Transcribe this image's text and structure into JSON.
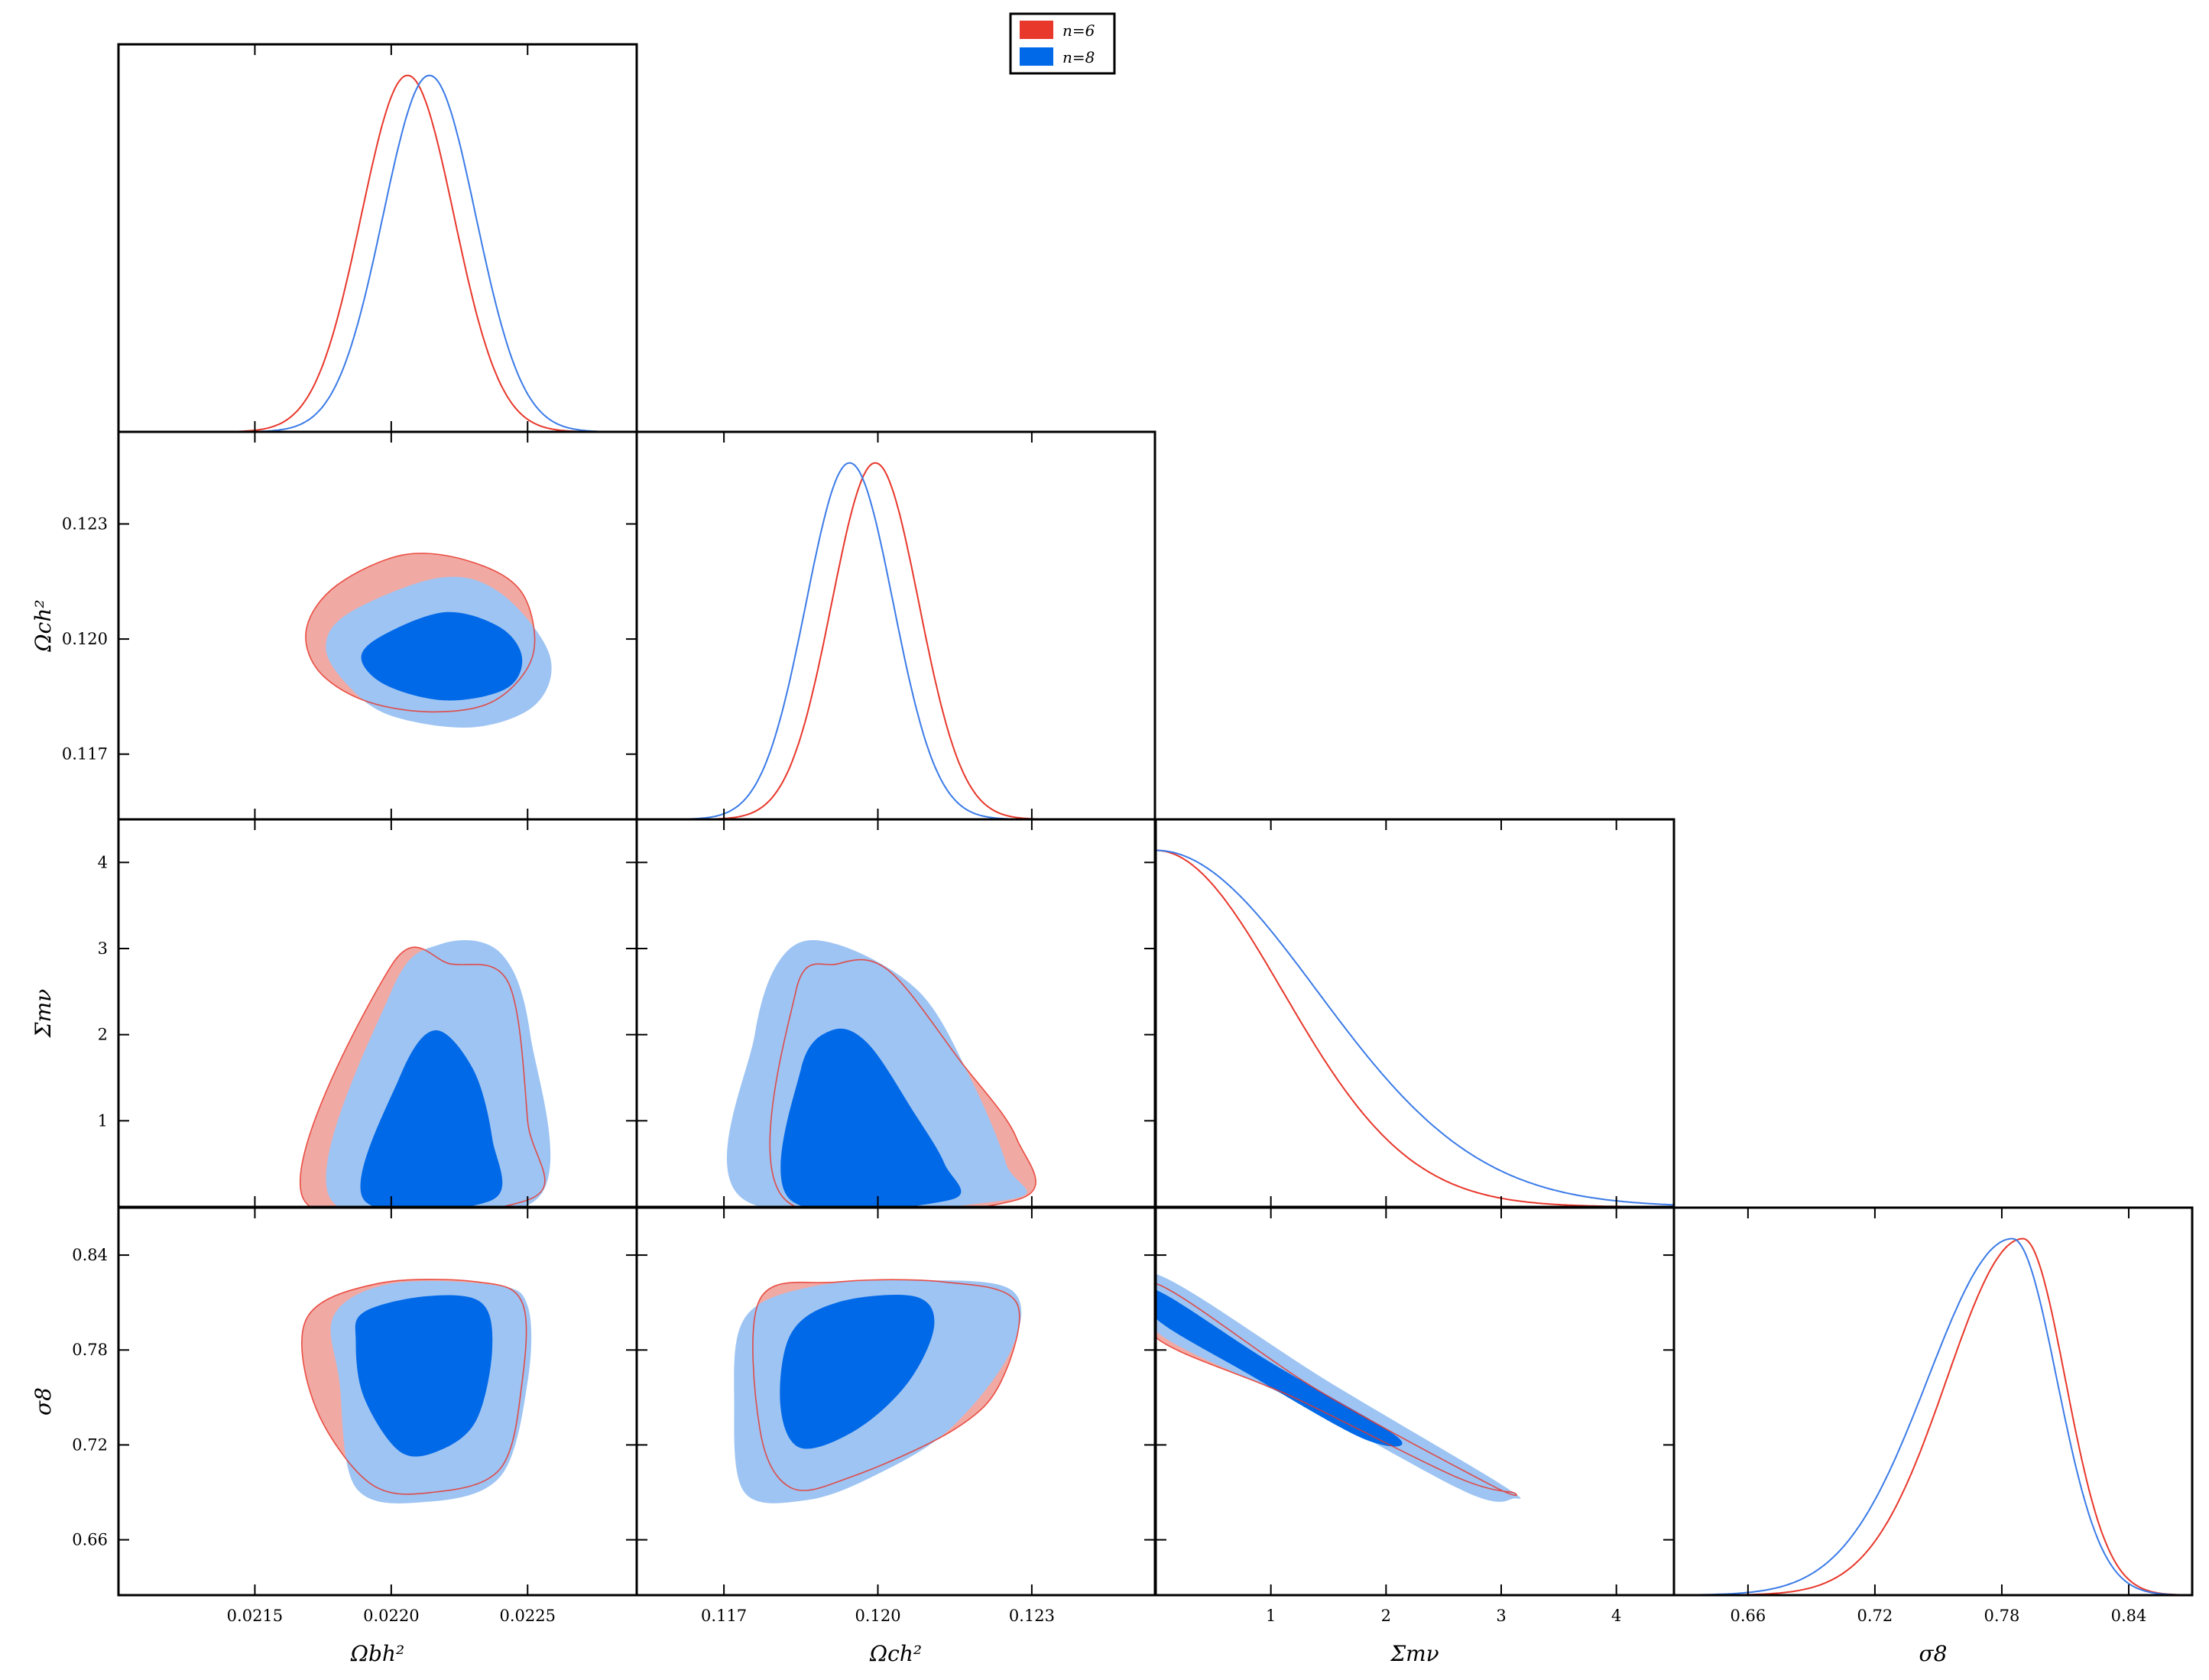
{
  "colors": {
    "n6_fill_outer": "#f1a9a3",
    "n6_fill_inner": "#de3a2c",
    "n6_line": "#e8372b",
    "n8_fill_outer": "#9ec4f3",
    "n8_fill_inner": "#0069e8",
    "n8_line": "#3b7be8",
    "frame": "#000000"
  },
  "legend": {
    "placement": "top-center",
    "entries": [
      {
        "label": "n=6",
        "color": "#e8372b"
      },
      {
        "label": "n=8",
        "color": "#0069e8"
      }
    ]
  },
  "chart_data": {
    "type": "triangle-plot",
    "title": "",
    "parameters": [
      {
        "key": "omb",
        "label": "Ωbh²",
        "range": [
          0.021,
          0.0229
        ],
        "ticks": [
          0.0215,
          0.022,
          0.0225
        ],
        "tick_labels": [
          "0.0215",
          "0.0220",
          "0.0225"
        ]
      },
      {
        "key": "omc",
        "label": "Ωch²",
        "range": [
          0.1153,
          0.1254
        ],
        "ticks": [
          0.117,
          0.12,
          0.123
        ],
        "tick_labels": [
          "0.117",
          "0.120",
          "0.123"
        ]
      },
      {
        "key": "mnu",
        "label": "Σmν",
        "range": [
          0.0,
          4.5
        ],
        "ticks": [
          1,
          2,
          3,
          4
        ],
        "tick_labels": [
          "1",
          "2",
          "3",
          "4"
        ]
      },
      {
        "key": "s8",
        "label": "σ8",
        "range": [
          0.625,
          0.87
        ],
        "ticks": [
          0.66,
          0.72,
          0.78,
          0.84
        ],
        "tick_labels": [
          "0.66",
          "0.72",
          "0.78",
          "0.84"
        ]
      }
    ],
    "series": [
      {
        "name": "n=6",
        "marginals": {
          "omb": {
            "peak": 0.02206,
            "sigma": 0.00017
          },
          "omc": {
            "peak": 0.11995,
            "sigma": 0.00085
          },
          "mnu": {
            "peak": 0.0,
            "sigma": 1.1
          },
          "s8": {
            "peak": 0.79,
            "sigma_low": 0.036,
            "sigma_high": 0.02
          }
        },
        "contours": {
          "omb|omc": {
            "outer": [
              [
                0.0218,
                0.1214
              ],
              [
                0.02205,
                0.1222
              ],
              [
                0.0223,
                0.122
              ],
              [
                0.02248,
                0.1212
              ],
              [
                0.02252,
                0.1196
              ],
              [
                0.02238,
                0.1184
              ],
              [
                0.02215,
                0.1181
              ],
              [
                0.0219,
                0.1184
              ],
              [
                0.02173,
                0.1192
              ],
              [
                0.02169,
                0.1203
              ]
            ],
            "inner": null
          },
          "omb|mnu": {
            "outer": [
              [
                0.02168,
                0.08
              ],
              [
                0.022,
                2.8
              ],
              [
                0.02222,
                2.82
              ],
              [
                0.02243,
                2.6
              ],
              [
                0.0225,
                1.0
              ],
              [
                0.0225,
                0.08
              ]
            ],
            "inner": null
          },
          "omc|mnu": {
            "outer": [
              [
                0.1182,
                0.08
              ],
              [
                0.1184,
                2.5
              ],
              [
                0.1192,
                2.82
              ],
              [
                0.1202,
                2.75
              ],
              [
                0.1216,
                1.7
              ],
              [
                0.1227,
                0.8
              ],
              [
                0.1227,
                0.08
              ]
            ],
            "inner": null
          },
          "omb|s8": {
            "outer": [
              [
                0.02169,
                0.8
              ],
              [
                0.02195,
                0.822
              ],
              [
                0.02232,
                0.823
              ],
              [
                0.02248,
                0.81
              ],
              [
                0.02248,
                0.76
              ],
              [
                0.0224,
                0.705
              ],
              [
                0.02215,
                0.69
              ],
              [
                0.02192,
                0.696
              ],
              [
                0.02172,
                0.745
              ]
            ],
            "inner": null
          },
          "omc|s8": {
            "outer": [
              [
                0.1177,
                0.812
              ],
              [
                0.1192,
                0.823
              ],
              [
                0.1213,
                0.823
              ],
              [
                0.1227,
                0.81
              ],
              [
                0.1224,
                0.76
              ],
              [
                0.1215,
                0.73
              ],
              [
                0.1195,
                0.7
              ],
              [
                0.1183,
                0.693
              ],
              [
                0.1177,
                0.73
              ]
            ],
            "inner": null
          },
          "mnu|s8": {
            "outer": [
              [
                0.0,
                0.822
              ],
              [
                1.4,
                0.755
              ],
              [
                2.9,
                0.695
              ],
              [
                3.1,
                0.69
              ],
              [
                2.6,
                0.7
              ],
              [
                1.2,
                0.75
              ],
              [
                0.0,
                0.788
              ]
            ],
            "inner": null
          }
        }
      },
      {
        "name": "n=8",
        "marginals": {
          "omb": {
            "peak": 0.02214,
            "sigma": 0.00017
          },
          "omc": {
            "peak": 0.11945,
            "sigma": 0.00085
          },
          "mnu": {
            "peak": 0.0,
            "sigma": 1.4
          },
          "s8": {
            "peak": 0.785,
            "sigma_low": 0.04,
            "sigma_high": 0.021
          }
        },
        "contours": {
          "omb|omc": {
            "outer": [
              [
                0.02185,
                0.1207
              ],
              [
                0.02218,
                0.1216
              ],
              [
                0.0224,
                0.1212
              ],
              [
                0.02258,
                0.1196
              ],
              [
                0.02253,
                0.1183
              ],
              [
                0.0223,
                0.1177
              ],
              [
                0.022,
                0.118
              ],
              [
                0.02184,
                0.1188
              ],
              [
                0.02176,
                0.1198
              ]
            ],
            "inner": [
              [
                0.02197,
                0.1201
              ],
              [
                0.0222,
                0.1207
              ],
              [
                0.0224,
                0.1203
              ],
              [
                0.02248,
                0.1195
              ],
              [
                0.02242,
                0.1187
              ],
              [
                0.0222,
                0.1184
              ],
              [
                0.02198,
                0.1188
              ],
              [
                0.02189,
                0.1195
              ]
            ]
          },
          "omb|mnu": {
            "outer": [
              [
                0.02178,
                0.08
              ],
              [
                0.022,
                2.5
              ],
              [
                0.02218,
                3.05
              ],
              [
                0.0224,
                2.95
              ],
              [
                0.02251,
                2.0
              ],
              [
                0.02253,
                0.08
              ]
            ],
            "inner": [
              [
                0.0219,
                0.08
              ],
              [
                0.02203,
                1.5
              ],
              [
                0.02216,
                2.05
              ],
              [
                0.0223,
                1.6
              ],
              [
                0.02237,
                0.8
              ],
              [
                0.02237,
                0.08
              ]
            ]
          },
          "omc|mnu": {
            "outer": [
              [
                0.1174,
                0.08
              ],
              [
                0.1176,
                2.0
              ],
              [
                0.1182,
                2.95
              ],
              [
                0.1192,
                3.05
              ],
              [
                0.1208,
                2.5
              ],
              [
                0.1218,
                1.5
              ],
              [
                0.1225,
                0.5
              ],
              [
                0.1225,
                0.08
              ]
            ],
            "inner": [
              [
                0.1183,
                0.08
              ],
              [
                0.1185,
                1.6
              ],
              [
                0.1191,
                2.05
              ],
              [
                0.1198,
                1.9
              ],
              [
                0.1207,
                1.1
              ],
              [
                0.1213,
                0.5
              ],
              [
                0.1214,
                0.08
              ]
            ]
          },
          "omb|s8": {
            "outer": [
              [
                0.02179,
                0.802
              ],
              [
                0.022,
                0.822
              ],
              [
                0.02238,
                0.821
              ],
              [
                0.0225,
                0.808
              ],
              [
                0.0225,
                0.76
              ],
              [
                0.0224,
                0.7
              ],
              [
                0.02213,
                0.684
              ],
              [
                0.02187,
                0.693
              ],
              [
                0.02181,
                0.76
              ]
            ],
            "inner": [
              [
                0.0219,
                0.804
              ],
              [
                0.02213,
                0.814
              ],
              [
                0.02233,
                0.81
              ],
              [
                0.02237,
                0.78
              ],
              [
                0.02231,
                0.735
              ],
              [
                0.02217,
                0.716
              ],
              [
                0.02203,
                0.716
              ],
              [
                0.0219,
                0.75
              ],
              [
                0.02187,
                0.785
              ]
            ]
          },
          "omc|s8": {
            "outer": [
              [
                0.1174,
                0.8
              ],
              [
                0.1187,
                0.82
              ],
              [
                0.1207,
                0.824
              ],
              [
                0.1226,
                0.818
              ],
              [
                0.1226,
                0.78
              ],
              [
                0.1214,
                0.73
              ],
              [
                0.1199,
                0.7
              ],
              [
                0.1186,
                0.685
              ],
              [
                0.1174,
                0.69
              ],
              [
                0.1172,
                0.745
              ]
            ],
            "inner": [
              [
                0.1183,
                0.79
              ],
              [
                0.1192,
                0.81
              ],
              [
                0.1207,
                0.814
              ],
              [
                0.1211,
                0.796
              ],
              [
                0.1206,
                0.76
              ],
              [
                0.1196,
                0.73
              ],
              [
                0.1185,
                0.718
              ],
              [
                0.1181,
                0.745
              ]
            ]
          },
          "mnu|s8": {
            "outer": [
              [
                0.0,
                0.828
              ],
              [
                1.5,
                0.76
              ],
              [
                3.0,
                0.695
              ],
              [
                3.1,
                0.686
              ],
              [
                2.7,
                0.69
              ],
              [
                1.3,
                0.745
              ],
              [
                0.0,
                0.792
              ]
            ],
            "inner": [
              [
                0.0,
                0.818
              ],
              [
                1.0,
                0.772
              ],
              [
                2.1,
                0.725
              ],
              [
                1.8,
                0.724
              ],
              [
                0.8,
                0.765
              ],
              [
                0.0,
                0.8
              ]
            ]
          }
        }
      }
    ]
  }
}
